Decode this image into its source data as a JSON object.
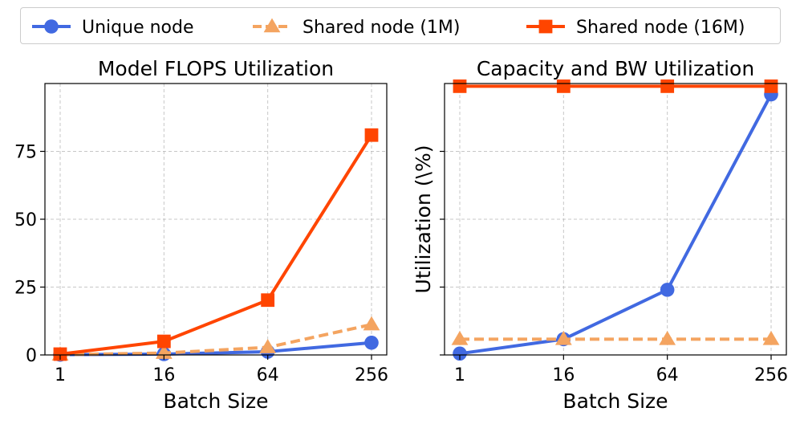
{
  "legend": {
    "entries": [
      {
        "label": "Unique node",
        "color": "#4169e1",
        "marker": "circle",
        "dash": false
      },
      {
        "label": "Shared node (1M)",
        "color": "#f4a460",
        "marker": "triangle",
        "dash": true
      },
      {
        "label": "Shared node (16M)",
        "color": "#ff4500",
        "marker": "square",
        "dash": false
      }
    ]
  },
  "chart_data": [
    {
      "type": "line",
      "title": "Model FLOPS Utilization",
      "xlabel": "Batch Size",
      "ylabel": "",
      "categories": [
        "1",
        "16",
        "64",
        "256"
      ],
      "ylim": [
        0,
        100
      ],
      "yticks": [
        0,
        25,
        50,
        75
      ],
      "grid": true,
      "series": [
        {
          "name": "Unique node",
          "values": [
            0.1,
            0.3,
            1.2,
            4.5
          ]
        },
        {
          "name": "Shared node (1M)",
          "values": [
            0.1,
            0.7,
            2.8,
            11.2
          ]
        },
        {
          "name": "Shared node (16M)",
          "values": [
            0.3,
            5.0,
            20.2,
            81.0
          ]
        }
      ]
    },
    {
      "type": "line",
      "title": "Capacity and BW Utilization",
      "xlabel": "Batch Size",
      "ylabel": "Utilization (\\%)",
      "categories": [
        "1",
        "16",
        "64",
        "256"
      ],
      "ylim": [
        0,
        100
      ],
      "yticks": [],
      "grid": true,
      "series": [
        {
          "name": "Unique node",
          "values": [
            0.5,
            5.8,
            24.0,
            96.0
          ]
        },
        {
          "name": "Shared node (1M)",
          "values": [
            5.8,
            5.8,
            5.8,
            5.8
          ]
        },
        {
          "name": "Shared node (16M)",
          "values": [
            99.0,
            99.0,
            99.0,
            99.0
          ]
        }
      ]
    }
  ]
}
